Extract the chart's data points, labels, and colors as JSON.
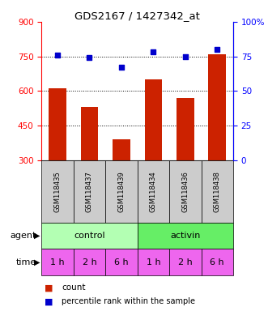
{
  "title": "GDS2167 / 1427342_at",
  "samples": [
    "GSM118435",
    "GSM118437",
    "GSM118439",
    "GSM118434",
    "GSM118436",
    "GSM118438"
  ],
  "counts": [
    610,
    530,
    390,
    650,
    570,
    760
  ],
  "percentiles": [
    76,
    74,
    67,
    78,
    75,
    80
  ],
  "ylim_left": [
    300,
    900
  ],
  "ylim_right": [
    0,
    100
  ],
  "yticks_left": [
    300,
    450,
    600,
    750,
    900
  ],
  "yticks_right": [
    0,
    25,
    50,
    75,
    100
  ],
  "bar_color": "#cc2200",
  "dot_color": "#0000cc",
  "agent_labels": [
    "control",
    "activin"
  ],
  "agent_colors_light": "#b3ffb3",
  "agent_colors_dark": "#66ee66",
  "time_color": "#ee66ee",
  "time_color_dark": "#dd44dd",
  "time_labels": [
    "1 h",
    "2 h",
    "6 h",
    "1 h",
    "2 h",
    "6 h"
  ],
  "gsm_bg": "#cccccc",
  "legend_count_color": "#cc2200",
  "legend_dot_color": "#0000cc"
}
